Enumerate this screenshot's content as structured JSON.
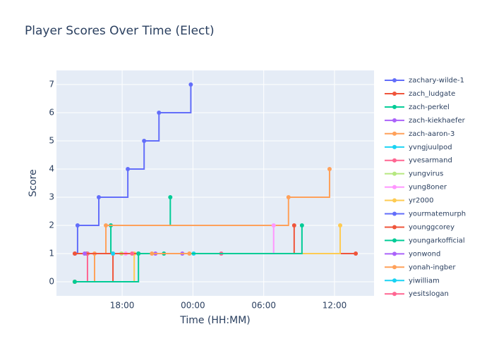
{
  "chart_data": {
    "type": "step",
    "line_shape": "hv",
    "title": "Player Scores Over Time (Elect)",
    "x_label": "Time (HH:MM)",
    "y_label": "Score",
    "xlim": [
      12.43,
      39.35
    ],
    "ylim": [
      -0.5,
      7.5
    ],
    "xticks": [
      {
        "value": 18,
        "label": "18:00"
      },
      {
        "value": 24,
        "label": "00:00"
      },
      {
        "value": 30,
        "label": "06:00"
      },
      {
        "value": 36,
        "label": "12:00"
      }
    ],
    "yticks": [
      0,
      1,
      2,
      3,
      4,
      5,
      6,
      7
    ],
    "grid": true,
    "legend": "right",
    "series": [
      {
        "name": "zachary-wilde-1",
        "color": "#636efa",
        "x": [
          14.0,
          14.22,
          16.02,
          18.48,
          19.86,
          21.12,
          23.82
        ],
        "values": [
          1,
          2,
          3,
          4,
          5,
          6,
          7
        ]
      },
      {
        "name": "zach_ludgate",
        "color": "#EF553B",
        "x": [
          13.98,
          17.22,
          37.8
        ],
        "values": [
          0,
          1,
          1
        ]
      },
      {
        "name": "zach-perkel",
        "color": "#00cc96",
        "x": [
          15.0,
          17.04,
          22.08
        ],
        "values": [
          1,
          2,
          3
        ]
      },
      {
        "name": "zach-kiekhaefer",
        "color": "#ab63fa",
        "x": [
          20.82,
          23.1
        ],
        "values": [
          1,
          1
        ]
      },
      {
        "name": "zach-aaron-3",
        "color": "#FFA15A",
        "x": [
          13.98,
          15.66,
          16.62,
          32.1,
          35.58
        ],
        "values": [
          0,
          1,
          2,
          3,
          4
        ]
      },
      {
        "name": "yvngjuulpod",
        "color": "#19d3f3",
        "x": [
          15.06,
          24.06
        ],
        "values": [
          1,
          1
        ]
      },
      {
        "name": "yvesarmand",
        "color": "#FF6692",
        "x": [
          13.98,
          15.06,
          26.4
        ],
        "values": [
          0,
          1,
          1
        ]
      },
      {
        "name": "yungvirus",
        "color": "#B6E880",
        "x": [
          17.94
        ],
        "values": [
          1
        ]
      },
      {
        "name": "yung8oner",
        "color": "#FF97FF",
        "x": [
          18.3,
          30.84
        ],
        "values": [
          1,
          2
        ]
      },
      {
        "name": "yr2000",
        "color": "#FECB52",
        "x": [
          13.98,
          19.02,
          36.48
        ],
        "values": [
          0,
          1,
          2
        ]
      },
      {
        "name": "yourmatemurph",
        "color": "#636efa",
        "x": [
          19.38
        ],
        "values": [
          1
        ]
      },
      {
        "name": "younggcorey",
        "color": "#EF553B",
        "x": [
          13.98,
          32.58
        ],
        "values": [
          1,
          2
        ]
      },
      {
        "name": "youngarkofficial",
        "color": "#00cc96",
        "x": [
          13.98,
          19.38,
          21.54,
          33.24
        ],
        "values": [
          0,
          1,
          1,
          2
        ]
      },
      {
        "name": "yonwond",
        "color": "#ab63fa",
        "x": [
          14.82
        ],
        "values": [
          1
        ]
      },
      {
        "name": "yonah-ingber",
        "color": "#FFA15A",
        "x": [
          20.52,
          23.7
        ],
        "values": [
          1,
          1
        ]
      },
      {
        "name": "yiwilliam",
        "color": "#19d3f3",
        "x": [
          17.22
        ],
        "values": [
          1
        ]
      },
      {
        "name": "yesitslogan",
        "color": "#FF6692",
        "x": [
          18.84
        ],
        "values": [
          1
        ]
      }
    ]
  }
}
